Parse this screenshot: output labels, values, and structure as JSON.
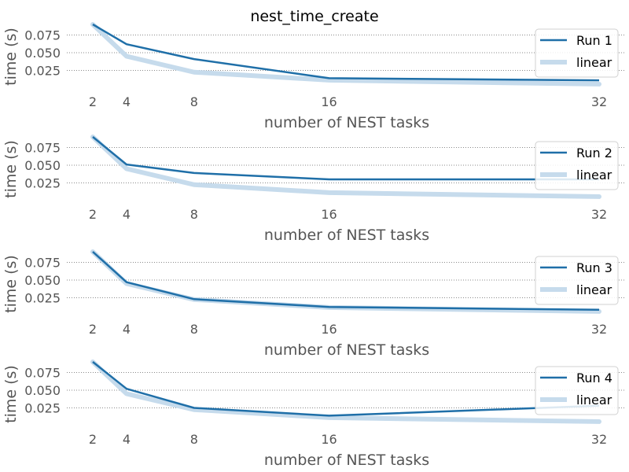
{
  "title": "nest_time_create",
  "colors": {
    "run": "#1f6fa8",
    "linear": "#c6dbec",
    "grid": "#8a8a8a",
    "legend_border": "#d0d0d0"
  },
  "chart_data": [
    {
      "type": "line",
      "xlabel": "number of NEST tasks",
      "ylabel": "time (s)",
      "x": [
        2,
        4,
        8,
        16,
        32
      ],
      "x_ticks": [
        "2",
        "4",
        "8",
        "16",
        "32"
      ],
      "y_ticks": [
        "0.025",
        "0.050",
        "0.075"
      ],
      "ylim": [
        0.0,
        0.09
      ],
      "grid": "horizontal dotted",
      "legend_position": "top-right",
      "series": [
        {
          "name": "Run 1",
          "values": [
            0.09,
            0.062,
            0.041,
            0.014,
            0.011
          ]
        },
        {
          "name": "linear",
          "values": [
            0.09,
            0.045,
            0.0225,
            0.01125,
            0.005625
          ]
        }
      ]
    },
    {
      "type": "line",
      "xlabel": "number of NEST tasks",
      "ylabel": "time (s)",
      "x": [
        2,
        4,
        8,
        16,
        32
      ],
      "x_ticks": [
        "2",
        "4",
        "8",
        "16",
        "32"
      ],
      "y_ticks": [
        "0.025",
        "0.050",
        "0.075"
      ],
      "ylim": [
        0.0,
        0.09
      ],
      "grid": "horizontal dotted",
      "legend_position": "top-right",
      "series": [
        {
          "name": "Run 2",
          "values": [
            0.09,
            0.051,
            0.039,
            0.03,
            0.03
          ]
        },
        {
          "name": "linear",
          "values": [
            0.09,
            0.045,
            0.0225,
            0.01125,
            0.005625
          ]
        }
      ]
    },
    {
      "type": "line",
      "xlabel": "number of NEST tasks",
      "ylabel": "time (s)",
      "x": [
        2,
        4,
        8,
        16,
        32
      ],
      "x_ticks": [
        "2",
        "4",
        "8",
        "16",
        "32"
      ],
      "y_ticks": [
        "0.025",
        "0.050",
        "0.075"
      ],
      "ylim": [
        0.0,
        0.09
      ],
      "grid": "horizontal dotted",
      "legend_position": "top-right",
      "series": [
        {
          "name": "Run 3",
          "values": [
            0.09,
            0.047,
            0.023,
            0.012,
            0.008
          ]
        },
        {
          "name": "linear",
          "values": [
            0.09,
            0.045,
            0.0225,
            0.01125,
            0.005625
          ]
        }
      ]
    },
    {
      "type": "line",
      "xlabel": "number of NEST tasks",
      "ylabel": "time (s)",
      "x": [
        2,
        4,
        8,
        16,
        32
      ],
      "x_ticks": [
        "2",
        "4",
        "8",
        "16",
        "32"
      ],
      "y_ticks": [
        "0.025",
        "0.050",
        "0.075"
      ],
      "ylim": [
        0.0,
        0.09
      ],
      "grid": "horizontal dotted",
      "legend_position": "top-right",
      "series": [
        {
          "name": "Run 4",
          "values": [
            0.09,
            0.052,
            0.025,
            0.014,
            0.028
          ]
        },
        {
          "name": "linear",
          "values": [
            0.09,
            0.045,
            0.0225,
            0.01125,
            0.005625
          ]
        }
      ]
    }
  ]
}
